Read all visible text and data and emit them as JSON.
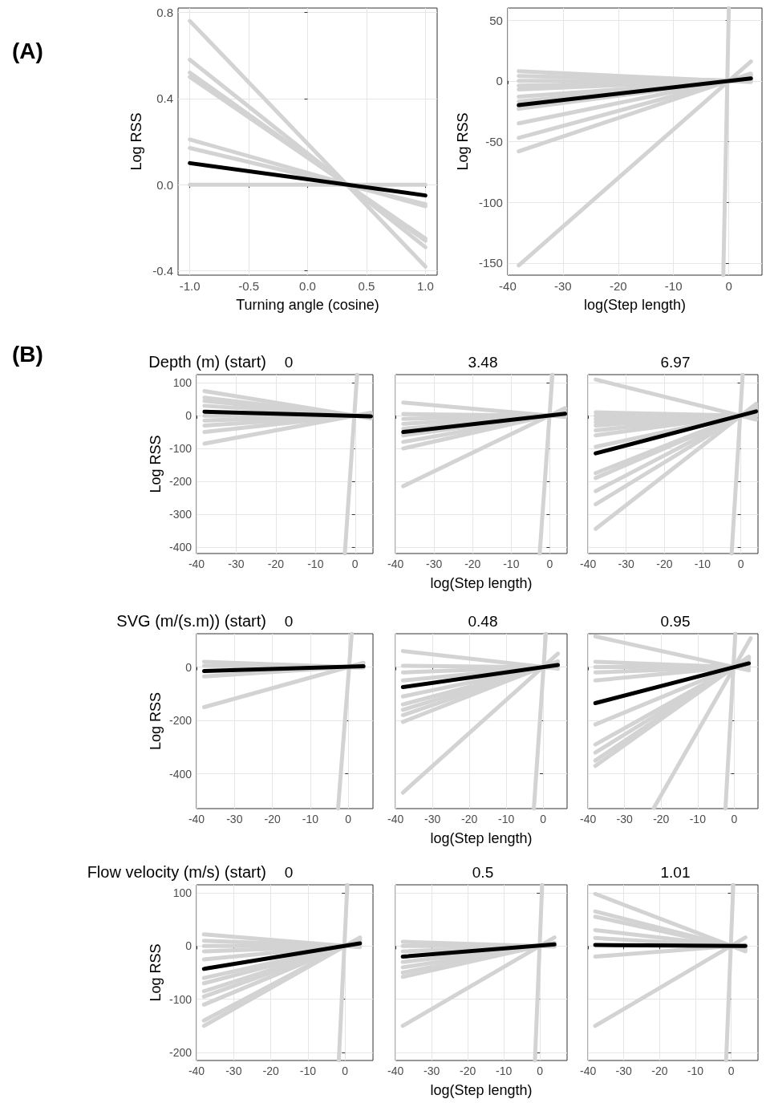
{
  "chart_data": [
    {
      "type": "line",
      "xlabel": "Turning angle (cosine)",
      "ylabel": "Log RSS",
      "annotations": [
        "(A)"
      ],
      "marker": "none",
      "grid": true,
      "xlim": [
        -1.1,
        1.1
      ],
      "xticks": [
        {
          "value": -1,
          "label": "-1.0"
        },
        -0.5,
        {
          "value": 0,
          "label": "0.0"
        },
        0.5,
        {
          "value": 1,
          "label": "1.0"
        }
      ],
      "ylim": [
        -0.42,
        0.82
      ],
      "yticks": [
        -0.4,
        {
          "value": 0,
          "label": "0.0"
        },
        0.4,
        0.8
      ],
      "series": [
        {
          "color": "#d3d3d3",
          "x": [
            -1,
            1
          ],
          "values": [
            0.76,
            -0.38
          ]
        },
        {
          "color": "#d3d3d3",
          "x": [
            -1,
            1
          ],
          "values": [
            0.58,
            -0.29
          ]
        },
        {
          "color": "#d3d3d3",
          "x": [
            -1,
            1
          ],
          "values": [
            0.52,
            -0.26
          ]
        },
        {
          "color": "#d3d3d3",
          "x": [
            -1,
            1
          ],
          "values": [
            0.5,
            -0.25
          ]
        },
        {
          "color": "#d3d3d3",
          "x": [
            -1,
            1
          ],
          "values": [
            0.21,
            -0.1
          ]
        },
        {
          "color": "#d3d3d3",
          "x": [
            -1,
            1
          ],
          "values": [
            0.17,
            -0.09
          ]
        },
        {
          "color": "#d3d3d3",
          "x": [
            -1,
            1
          ],
          "values": [
            0,
            0
          ]
        },
        {
          "color": "#000000",
          "x": [
            -1,
            1
          ],
          "values": [
            0.1,
            -0.05
          ]
        }
      ]
    },
    {
      "type": "line",
      "xlabel": "log(Step length)",
      "ylabel": "Log RSS",
      "marker": "none",
      "grid": true,
      "xlim": [
        -40,
        6
      ],
      "xticks": [
        -40,
        -30,
        -20,
        -10,
        0
      ],
      "ylim": [
        -160,
        60
      ],
      "yticks": [
        -150,
        -100,
        -50,
        0,
        50
      ],
      "series": [
        {
          "color": "#d3d3d3",
          "x": [
            -38,
            4
          ],
          "values": [
            8,
            -1
          ]
        },
        {
          "color": "#d3d3d3",
          "x": [
            -38,
            4
          ],
          "values": [
            4,
            0
          ]
        },
        {
          "color": "#d3d3d3",
          "x": [
            -38,
            4
          ],
          "values": [
            0,
            0
          ]
        },
        {
          "color": "#d3d3d3",
          "x": [
            -38,
            4
          ],
          "values": [
            -4,
            0
          ]
        },
        {
          "color": "#d3d3d3",
          "x": [
            -38,
            4
          ],
          "values": [
            -7,
            1
          ]
        },
        {
          "color": "#d3d3d3",
          "x": [
            -38,
            4
          ],
          "values": [
            -13,
            1
          ]
        },
        {
          "color": "#d3d3d3",
          "x": [
            -38,
            4
          ],
          "values": [
            -17,
            2
          ]
        },
        {
          "color": "#d3d3d3",
          "x": [
            -38,
            4
          ],
          "values": [
            -23,
            2
          ]
        },
        {
          "color": "#d3d3d3",
          "x": [
            -38,
            4
          ],
          "values": [
            -35,
            4
          ]
        },
        {
          "color": "#d3d3d3",
          "x": [
            -38,
            4
          ],
          "values": [
            -47,
            5
          ]
        },
        {
          "color": "#d3d3d3",
          "x": [
            -38,
            4
          ],
          "values": [
            -58,
            6
          ]
        },
        {
          "color": "#d3d3d3",
          "x": [
            -38,
            4
          ],
          "values": [
            -152,
            16
          ]
        },
        {
          "color": "#d3d3d3",
          "x": [
            -1,
            0
          ],
          "values": [
            -160,
            60
          ]
        },
        {
          "color": "#000000",
          "x": [
            -38,
            4
          ],
          "values": [
            -20,
            2
          ]
        }
      ]
    },
    {
      "type": "line",
      "title": "0",
      "ylabel": "Log RSS",
      "annotations": [
        "(B)",
        "Depth (m) (start)"
      ],
      "marker": "none",
      "grid": true,
      "xlim": [
        -40,
        4.5
      ],
      "xticks": [
        -40,
        -30,
        -20,
        -10,
        0
      ],
      "ylim": [
        -420,
        125
      ],
      "yticks": [
        -400,
        -300,
        -200,
        -100,
        0,
        100
      ],
      "series": [
        {
          "color": "#d3d3d3",
          "x": [
            -38,
            4
          ],
          "values": [
            75,
            -8
          ]
        },
        {
          "color": "#d3d3d3",
          "x": [
            -38,
            4
          ],
          "values": [
            55,
            -6
          ]
        },
        {
          "color": "#d3d3d3",
          "x": [
            -38,
            4
          ],
          "values": [
            45,
            -5
          ]
        },
        {
          "color": "#d3d3d3",
          "x": [
            -38,
            4
          ],
          "values": [
            30,
            -3
          ]
        },
        {
          "color": "#d3d3d3",
          "x": [
            -38,
            4
          ],
          "values": [
            0,
            0
          ]
        },
        {
          "color": "#d3d3d3",
          "x": [
            -38,
            4
          ],
          "values": [
            -15,
            2
          ]
        },
        {
          "color": "#d3d3d3",
          "x": [
            -38,
            4
          ],
          "values": [
            -30,
            3
          ]
        },
        {
          "color": "#d3d3d3",
          "x": [
            -38,
            4
          ],
          "values": [
            -50,
            5
          ]
        },
        {
          "color": "#d3d3d3",
          "x": [
            -38,
            4
          ],
          "values": [
            -85,
            9
          ]
        },
        {
          "color": "#d3d3d3",
          "x": [
            -2.6,
            0.5
          ],
          "values": [
            -420,
            125
          ]
        },
        {
          "color": "#000000",
          "x": [
            -38,
            4
          ],
          "values": [
            12,
            -2
          ]
        }
      ]
    },
    {
      "type": "line",
      "title": "3.48",
      "xlabel": "log(Step length)",
      "tick_labels": "x",
      "marker": "none",
      "grid": true,
      "xlim": [
        -40,
        4.5
      ],
      "xticks": [
        -40,
        -30,
        -20,
        -10,
        0
      ],
      "ylim": [
        -420,
        125
      ],
      "yticks": [
        -400,
        -300,
        -200,
        -100,
        0,
        100
      ],
      "series": [
        {
          "color": "#d3d3d3",
          "x": [
            -38,
            4
          ],
          "values": [
            40,
            -4
          ]
        },
        {
          "color": "#d3d3d3",
          "x": [
            -38,
            4
          ],
          "values": [
            5,
            -1
          ]
        },
        {
          "color": "#d3d3d3",
          "x": [
            -38,
            4
          ],
          "values": [
            -10,
            1
          ]
        },
        {
          "color": "#d3d3d3",
          "x": [
            -38,
            4
          ],
          "values": [
            -25,
            3
          ]
        },
        {
          "color": "#d3d3d3",
          "x": [
            -38,
            4
          ],
          "values": [
            -40,
            4
          ]
        },
        {
          "color": "#d3d3d3",
          "x": [
            -38,
            4
          ],
          "values": [
            -60,
            6
          ]
        },
        {
          "color": "#d3d3d3",
          "x": [
            -38,
            4
          ],
          "values": [
            -80,
            8
          ]
        },
        {
          "color": "#d3d3d3",
          "x": [
            -38,
            4
          ],
          "values": [
            -100,
            11
          ]
        },
        {
          "color": "#d3d3d3",
          "x": [
            -38,
            4
          ],
          "values": [
            -215,
            23
          ]
        },
        {
          "color": "#d3d3d3",
          "x": [
            -2.6,
            0.7
          ],
          "values": [
            -420,
            125
          ]
        },
        {
          "color": "#000000",
          "x": [
            -38,
            4
          ],
          "values": [
            -50,
            6
          ]
        }
      ]
    },
    {
      "type": "line",
      "title": "6.97",
      "tick_labels": "x",
      "marker": "none",
      "grid": true,
      "xlim": [
        -40,
        4.5
      ],
      "xticks": [
        -40,
        -30,
        -20,
        -10,
        0
      ],
      "ylim": [
        -420,
        125
      ],
      "yticks": [
        -400,
        -300,
        -200,
        -100,
        0,
        100
      ],
      "series": [
        {
          "color": "#d3d3d3",
          "x": [
            -38,
            4
          ],
          "values": [
            110,
            -12
          ]
        },
        {
          "color": "#d3d3d3",
          "x": [
            -38,
            4
          ],
          "values": [
            10,
            -1
          ]
        },
        {
          "color": "#d3d3d3",
          "x": [
            -38,
            4
          ],
          "values": [
            0,
            0
          ]
        },
        {
          "color": "#d3d3d3",
          "x": [
            -38,
            4
          ],
          "values": [
            -10,
            1
          ]
        },
        {
          "color": "#d3d3d3",
          "x": [
            -38,
            4
          ],
          "values": [
            -20,
            2
          ]
        },
        {
          "color": "#d3d3d3",
          "x": [
            -38,
            4
          ],
          "values": [
            -30,
            3
          ]
        },
        {
          "color": "#d3d3d3",
          "x": [
            -38,
            4
          ],
          "values": [
            -45,
            5
          ]
        },
        {
          "color": "#d3d3d3",
          "x": [
            -38,
            4
          ],
          "values": [
            -60,
            6
          ]
        },
        {
          "color": "#d3d3d3",
          "x": [
            -38,
            4
          ],
          "values": [
            -95,
            10
          ]
        },
        {
          "color": "#d3d3d3",
          "x": [
            -38,
            4
          ],
          "values": [
            -175,
            18
          ]
        },
        {
          "color": "#d3d3d3",
          "x": [
            -38,
            4
          ],
          "values": [
            -190,
            20
          ]
        },
        {
          "color": "#d3d3d3",
          "x": [
            -38,
            4
          ],
          "values": [
            -230,
            24
          ]
        },
        {
          "color": "#d3d3d3",
          "x": [
            -38,
            4
          ],
          "values": [
            -270,
            28
          ]
        },
        {
          "color": "#d3d3d3",
          "x": [
            -38,
            4
          ],
          "values": [
            -345,
            36
          ]
        },
        {
          "color": "#d3d3d3",
          "x": [
            -2.4,
            0.5
          ],
          "values": [
            -420,
            125
          ]
        },
        {
          "color": "#000000",
          "x": [
            -38,
            4
          ],
          "values": [
            -115,
            13
          ]
        }
      ]
    },
    {
      "type": "line",
      "title": "0",
      "ylabel": "Log RSS",
      "annotations": [
        "SVG (m/(s.m)) (start)"
      ],
      "marker": "none",
      "grid": true,
      "xlim": [
        -40,
        6.5
      ],
      "xticks": [
        -40,
        -30,
        -20,
        -10,
        0
      ],
      "ylim": [
        -530,
        125
      ],
      "yticks": [
        -400,
        -200,
        0
      ],
      "series": [
        {
          "color": "#d3d3d3",
          "x": [
            -38,
            4
          ],
          "values": [
            20,
            -2
          ]
        },
        {
          "color": "#d3d3d3",
          "x": [
            -38,
            4
          ],
          "values": [
            5,
            -1
          ]
        },
        {
          "color": "#d3d3d3",
          "x": [
            -38,
            4
          ],
          "values": [
            -35,
            4
          ]
        },
        {
          "color": "#d3d3d3",
          "x": [
            -38,
            4
          ],
          "values": [
            -150,
            16
          ]
        },
        {
          "color": "#d3d3d3",
          "x": [
            -2.7,
            0.9
          ],
          "values": [
            -530,
            125
          ]
        },
        {
          "color": "#000000",
          "x": [
            -38,
            4
          ],
          "values": [
            -15,
            3
          ]
        }
      ]
    },
    {
      "type": "line",
      "title": "0.48",
      "xlabel": "log(Step length)",
      "tick_labels": "x",
      "marker": "none",
      "grid": true,
      "xlim": [
        -40,
        6.5
      ],
      "xticks": [
        -40,
        -30,
        -20,
        -10,
        0
      ],
      "ylim": [
        -530,
        125
      ],
      "yticks": [
        -400,
        -200,
        0
      ],
      "series": [
        {
          "color": "#d3d3d3",
          "x": [
            -38,
            4
          ],
          "values": [
            60,
            -6
          ]
        },
        {
          "color": "#d3d3d3",
          "x": [
            -38,
            4
          ],
          "values": [
            5,
            -1
          ]
        },
        {
          "color": "#d3d3d3",
          "x": [
            -38,
            4
          ],
          "values": [
            -20,
            2
          ]
        },
        {
          "color": "#d3d3d3",
          "x": [
            -38,
            4
          ],
          "values": [
            -50,
            5
          ]
        },
        {
          "color": "#d3d3d3",
          "x": [
            -38,
            4
          ],
          "values": [
            -110,
            12
          ]
        },
        {
          "color": "#d3d3d3",
          "x": [
            -38,
            4
          ],
          "values": [
            -140,
            15
          ]
        },
        {
          "color": "#d3d3d3",
          "x": [
            -38,
            4
          ],
          "values": [
            -160,
            17
          ]
        },
        {
          "color": "#d3d3d3",
          "x": [
            -38,
            4
          ],
          "values": [
            -180,
            19
          ]
        },
        {
          "color": "#d3d3d3",
          "x": [
            -38,
            4
          ],
          "values": [
            -205,
            22
          ]
        },
        {
          "color": "#d3d3d3",
          "x": [
            -38,
            4
          ],
          "values": [
            -470,
            50
          ]
        },
        {
          "color": "#d3d3d3",
          "x": [
            -2.5,
            0.75
          ],
          "values": [
            -530,
            125
          ]
        },
        {
          "color": "#000000",
          "x": [
            -38,
            4
          ],
          "values": [
            -75,
            8
          ]
        }
      ]
    },
    {
      "type": "line",
      "title": "0.95",
      "tick_labels": "x",
      "marker": "none",
      "grid": true,
      "xlim": [
        -40,
        6.5
      ],
      "xticks": [
        -40,
        -30,
        -20,
        -10,
        0
      ],
      "ylim": [
        -530,
        125
      ],
      "yticks": [
        -400,
        -200,
        0
      ],
      "series": [
        {
          "color": "#d3d3d3",
          "x": [
            -38,
            4
          ],
          "values": [
            115,
            -12
          ]
        },
        {
          "color": "#d3d3d3",
          "x": [
            -38,
            4
          ],
          "values": [
            20,
            -2
          ]
        },
        {
          "color": "#d3d3d3",
          "x": [
            -38,
            4
          ],
          "values": [
            0,
            0
          ]
        },
        {
          "color": "#d3d3d3",
          "x": [
            -38,
            4
          ],
          "values": [
            -20,
            2
          ]
        },
        {
          "color": "#d3d3d3",
          "x": [
            -38,
            4
          ],
          "values": [
            -50,
            5
          ]
        },
        {
          "color": "#d3d3d3",
          "x": [
            -38,
            4
          ],
          "values": [
            -215,
            23
          ]
        },
        {
          "color": "#d3d3d3",
          "x": [
            -38,
            4
          ],
          "values": [
            -290,
            31
          ]
        },
        {
          "color": "#d3d3d3",
          "x": [
            -38,
            4
          ],
          "values": [
            -320,
            34
          ]
        },
        {
          "color": "#d3d3d3",
          "x": [
            -38,
            4
          ],
          "values": [
            -350,
            37
          ]
        },
        {
          "color": "#d3d3d3",
          "x": [
            -38,
            4
          ],
          "values": [
            -370,
            39
          ]
        },
        {
          "color": "#d3d3d3",
          "x": [
            -22,
            4.5
          ],
          "values": [
            -528,
            108
          ]
        },
        {
          "color": "#d3d3d3",
          "x": [
            -2.4,
            0.3
          ],
          "values": [
            -530,
            125
          ]
        },
        {
          "color": "#000000",
          "x": [
            -38,
            4
          ],
          "values": [
            -135,
            14
          ]
        }
      ]
    },
    {
      "type": "line",
      "title": "0",
      "ylabel": "Log RSS",
      "annotations": [
        "Flow velocity (m/s) (start)"
      ],
      "marker": "none",
      "grid": true,
      "xlim": [
        -40,
        7.5
      ],
      "xticks": [
        -40,
        -30,
        -20,
        -10,
        0
      ],
      "ylim": [
        -215,
        115
      ],
      "yticks": [
        -200,
        -100,
        0,
        100
      ],
      "series": [
        {
          "color": "#d3d3d3",
          "x": [
            -38,
            4
          ],
          "values": [
            22,
            -2
          ]
        },
        {
          "color": "#d3d3d3",
          "x": [
            -38,
            4
          ],
          "values": [
            10,
            -1
          ]
        },
        {
          "color": "#d3d3d3",
          "x": [
            -38,
            4
          ],
          "values": [
            0,
            0
          ]
        },
        {
          "color": "#d3d3d3",
          "x": [
            -38,
            4
          ],
          "values": [
            -10,
            1
          ]
        },
        {
          "color": "#d3d3d3",
          "x": [
            -38,
            4
          ],
          "values": [
            -25,
            3
          ]
        },
        {
          "color": "#d3d3d3",
          "x": [
            -38,
            4
          ],
          "values": [
            -60,
            6
          ]
        },
        {
          "color": "#d3d3d3",
          "x": [
            -38,
            4
          ],
          "values": [
            -70,
            7
          ]
        },
        {
          "color": "#d3d3d3",
          "x": [
            -38,
            4
          ],
          "values": [
            -85,
            9
          ]
        },
        {
          "color": "#d3d3d3",
          "x": [
            -38,
            4
          ],
          "values": [
            -95,
            10
          ]
        },
        {
          "color": "#d3d3d3",
          "x": [
            -38,
            4
          ],
          "values": [
            -110,
            12
          ]
        },
        {
          "color": "#d3d3d3",
          "x": [
            -38,
            4
          ],
          "values": [
            -140,
            15
          ]
        },
        {
          "color": "#d3d3d3",
          "x": [
            -38,
            4
          ],
          "values": [
            -150,
            16
          ]
        },
        {
          "color": "#d3d3d3",
          "x": [
            -1.7,
            0.6
          ],
          "values": [
            -215,
            115
          ]
        },
        {
          "color": "#000000",
          "x": [
            -38,
            4
          ],
          "values": [
            -43,
            5
          ]
        }
      ]
    },
    {
      "type": "line",
      "title": "0.5",
      "xlabel": "log(Step length)",
      "tick_labels": "x",
      "marker": "none",
      "grid": true,
      "xlim": [
        -40,
        7.5
      ],
      "xticks": [
        -40,
        -30,
        -20,
        -10,
        0
      ],
      "ylim": [
        -215,
        115
      ],
      "yticks": [
        -200,
        -100,
        0,
        100
      ],
      "series": [
        {
          "color": "#d3d3d3",
          "x": [
            -38,
            4
          ],
          "values": [
            8,
            -1
          ]
        },
        {
          "color": "#d3d3d3",
          "x": [
            -38,
            4
          ],
          "values": [
            0,
            0
          ]
        },
        {
          "color": "#d3d3d3",
          "x": [
            -38,
            4
          ],
          "values": [
            -10,
            1
          ]
        },
        {
          "color": "#d3d3d3",
          "x": [
            -38,
            4
          ],
          "values": [
            -30,
            3
          ]
        },
        {
          "color": "#d3d3d3",
          "x": [
            -38,
            4
          ],
          "values": [
            -40,
            4
          ]
        },
        {
          "color": "#d3d3d3",
          "x": [
            -38,
            4
          ],
          "values": [
            -50,
            5
          ]
        },
        {
          "color": "#d3d3d3",
          "x": [
            -38,
            4
          ],
          "values": [
            -58,
            6
          ]
        },
        {
          "color": "#d3d3d3",
          "x": [
            -38,
            4
          ],
          "values": [
            -150,
            16
          ]
        },
        {
          "color": "#d3d3d3",
          "x": [
            -1.4,
            0.6
          ],
          "values": [
            -215,
            115
          ]
        },
        {
          "color": "#000000",
          "x": [
            -38,
            4
          ],
          "values": [
            -20,
            3
          ]
        }
      ]
    },
    {
      "type": "line",
      "title": "1.01",
      "tick_labels": "x",
      "marker": "none",
      "grid": true,
      "xlim": [
        -40,
        7.5
      ],
      "xticks": [
        -40,
        -30,
        -20,
        -10,
        0
      ],
      "ylim": [
        -215,
        115
      ],
      "yticks": [
        -200,
        -100,
        0,
        100
      ],
      "series": [
        {
          "color": "#d3d3d3",
          "x": [
            -38,
            4
          ],
          "values": [
            98,
            -10
          ]
        },
        {
          "color": "#d3d3d3",
          "x": [
            -38,
            4
          ],
          "values": [
            65,
            -7
          ]
        },
        {
          "color": "#d3d3d3",
          "x": [
            -38,
            4
          ],
          "values": [
            55,
            -6
          ]
        },
        {
          "color": "#d3d3d3",
          "x": [
            -38,
            4
          ],
          "values": [
            30,
            -3
          ]
        },
        {
          "color": "#d3d3d3",
          "x": [
            -38,
            4
          ],
          "values": [
            15,
            -2
          ]
        },
        {
          "color": "#d3d3d3",
          "x": [
            -38,
            4
          ],
          "values": [
            -20,
            2
          ]
        },
        {
          "color": "#d3d3d3",
          "x": [
            -38,
            4
          ],
          "values": [
            -150,
            16
          ]
        },
        {
          "color": "#d3d3d3",
          "x": [
            -1.4,
            0.6
          ],
          "values": [
            -215,
            115
          ]
        },
        {
          "color": "#000000",
          "x": [
            -38,
            4
          ],
          "values": [
            2,
            0
          ]
        }
      ]
    }
  ]
}
